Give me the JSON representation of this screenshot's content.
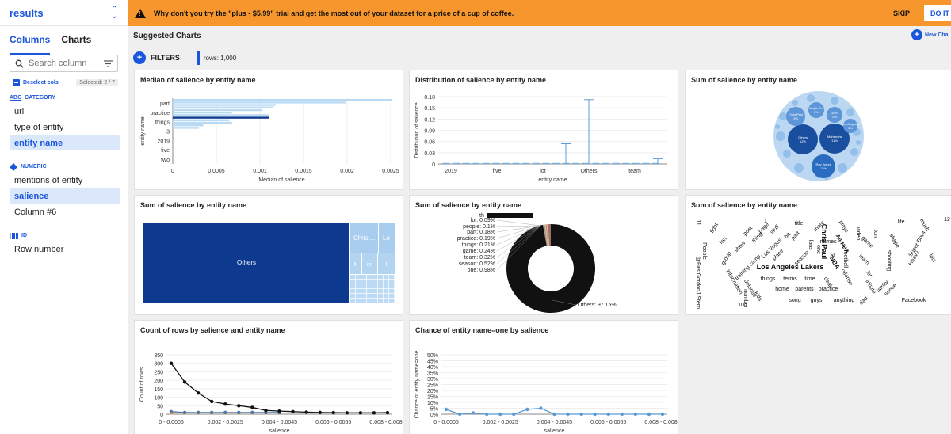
{
  "sidebar": {
    "title": "results",
    "tabs": [
      "Columns",
      "Charts"
    ],
    "search_placeholder": "Search column",
    "deselect_label": "Deselect cols",
    "selected_badge": "Selected: 2 / 7",
    "category": {
      "icon": "ABC",
      "label": "CATEGORY",
      "items": [
        "url",
        "type of entity",
        "entity name"
      ]
    },
    "numeric": {
      "label": "NUMERIC",
      "items": [
        "mentions of entity",
        "salience",
        "Column #6"
      ]
    },
    "id": {
      "label": "ID",
      "items": [
        "Row number"
      ]
    }
  },
  "banner": {
    "text": "Why don't you try the \"plus - $5.99\" trial and get the most out of your dataset for a price of a cup of coffee.",
    "skip": "SKIP",
    "doit": "DO IT"
  },
  "main": {
    "title": "Suggested Charts",
    "new_chart": "New Cha",
    "filters": "FILTERS",
    "rows": "rows: 1,000"
  },
  "colors": {
    "accent": "#1a56db",
    "banner": "#f7962c",
    "dark_blue": "#0d3a8e",
    "light_blue": "#b9daf5",
    "orange": "#f28e2b",
    "black": "#111111"
  },
  "cards": [
    "Median of salience by entity name",
    "Distribution of salience by entity name",
    "Sum of salience by entity name",
    "Sum of salience by entity name",
    "Sum of salience by entity name",
    "Sum of salience by entity name",
    "Count of rows by salience and entity name",
    "Chance of entity name=one by salience"
  ],
  "chart_data": [
    {
      "type": "bar",
      "title": "Median of salience by entity name",
      "orientation": "horizontal",
      "categories": [
        "part",
        "practice",
        "things",
        "3",
        "2019",
        "five",
        "two"
      ],
      "values": [
        0.0025,
        0.00115,
        0.00102,
        0.00035,
        0.00015,
        5e-05,
        2e-05
      ],
      "xlabel": "Median of salience",
      "ylabel": "entity name",
      "xticks": [
        "0",
        "0.0005",
        "0.001",
        "0.0015",
        "0.002",
        "0.0025"
      ],
      "xlim": [
        0,
        0.0025
      ]
    },
    {
      "type": "box",
      "title": "Distribution of salience by entity name",
      "categories": [
        "2019",
        "five",
        "lot",
        "Others",
        "team"
      ],
      "xlabel": "entity name",
      "ylabel": "Distribution of salience",
      "yticks": [
        "0",
        "0.03",
        "0.06",
        "0.09",
        "0.12",
        "0.15",
        "0.18"
      ],
      "ylim": [
        0,
        0.18
      ],
      "whisker_max": {
        "lot": 0.054,
        "Others": 0.172,
        "team": 0.014
      }
    },
    {
      "type": "bubble",
      "title": "Sum of salience by entity name",
      "labels": [
        "Others 12%",
        "Mahendra 11%",
        "Roy Jones 12%",
        "Chris Paul 3%",
        "Magic Tra 2%",
        "Don't 2%",
        "Los Angeles 3%"
      ]
    },
    {
      "type": "treemap",
      "title": "Sum of salience by entity name",
      "labels": [
        "Others",
        "Chris ...",
        "Lo",
        "N",
        "on",
        "l"
      ]
    },
    {
      "type": "pie",
      "title": "Sum of salience by entity name",
      "slices": [
        {
          "label": "lot",
          "value": 0.09
        },
        {
          "label": "people",
          "value": 0.1
        },
        {
          "label": "part",
          "value": 0.18
        },
        {
          "label": "practice",
          "value": 0.19
        },
        {
          "label": "things",
          "value": 0.21
        },
        {
          "label": "game",
          "value": 0.24
        },
        {
          "label": "team",
          "value": 0.32
        },
        {
          "label": "season",
          "value": 0.52
        },
        {
          "label": "one",
          "value": 0.98
        },
        {
          "label": "Others",
          "value": 97.15
        }
      ],
      "slice_labels": [
        "lot: 0.09%",
        "people: 0.1%",
        "part: 0.18%",
        "practice: 0.19%",
        "things: 0.21%",
        "game: 0.24%",
        "team: 0.32%",
        "season: 0.52%",
        "one: 0.98%",
        "Others: 97.15%"
      ]
    },
    {
      "type": "wordcloud",
      "title": "Sum of salience by entity name",
      "words": [
        "Los Angeles Lakers",
        "Chris Paul",
        "NBA",
        "All-NBA",
        "names",
        "things",
        "terms",
        "time",
        "home",
        "parents",
        "practice",
        "song",
        "guys",
        "anything",
        "Facebook",
        "team",
        "game",
        "season",
        "title",
        "more",
        "part",
        "place",
        "Las Vegas",
        "training camp",
        "show",
        "post",
        "page",
        "thing",
        "stuff",
        "bit",
        "fans",
        "one",
        "football",
        "offense",
        "deal",
        "lot",
        "tribute",
        "family",
        "sense",
        "shooting",
        "shape",
        "life",
        "much",
        "Super Bowl",
        "Heavy",
        "lots",
        "plays",
        "video",
        "fan",
        "group",
        "fight",
        "People",
        "information",
        "defense",
        "kids",
        "number",
        "dad",
        "11",
        "12",
        "10",
        "1",
        "all",
        "ton"
      ]
    },
    {
      "type": "line",
      "title": "Count of rows by salience and entity name",
      "categories": [
        "0 - 0.0005",
        "0.0005 - 0.001",
        "0.001 - 0.0015",
        "0.0015 - 0.002",
        "0.002 - 0.0025",
        "0.0025 - 0.003",
        "0.003 - 0.0035",
        "0.0035 - 0.004",
        "0.004 - 0.0045",
        "0.0045 - 0.005",
        "0.005 - 0.0055",
        "0.0055 - 0.006",
        "0.006 - 0.0065",
        "0.0065 - 0.007",
        "0.007 - 0.0075",
        "0.0075 - 0.008",
        "0.008 - 0.0085"
      ],
      "xticks": [
        "0 - 0.0005",
        "0.002 - 0.0025",
        "0.004 - 0.0045",
        "0.006 - 0.0065",
        "0.008 - 0.0085"
      ],
      "series": [
        {
          "values": [
            300,
            190,
            125,
            75,
            60,
            50,
            40,
            22,
            18,
            15,
            12,
            10,
            9,
            8,
            8,
            8,
            9
          ]
        },
        {
          "values": [
            8,
            8,
            8,
            8,
            8,
            8,
            8,
            8,
            null,
            null,
            null,
            null,
            null,
            null,
            null,
            null,
            null
          ]
        },
        {
          "values": [
            15,
            10,
            10,
            10,
            10,
            10,
            10,
            10,
            10,
            null,
            null,
            null,
            null,
            null,
            null,
            null,
            null
          ]
        }
      ],
      "xlabel": "salience",
      "ylabel": "Count of rows",
      "yticks": [
        "0",
        "50",
        "100",
        "150",
        "200",
        "250",
        "300",
        "350"
      ],
      "ylim": [
        0,
        350
      ]
    },
    {
      "type": "line",
      "title": "Chance of entity name=one by salience",
      "categories": [
        "0 - 0.0005",
        "0.0005 - 0.001",
        "0.001 - 0.0015",
        "0.0015 - 0.002",
        "0.002 - 0.0025",
        "0.0025 - 0.003",
        "0.003 - 0.0035",
        "0.0035 - 0.004",
        "0.004 - 0.0045",
        "0.0045 - 0.005",
        "0.005 - 0.0055",
        "0.0055 - 0.006",
        "0.006 - 0.0065",
        "0.0065 - 0.007",
        "0.007 - 0.0075",
        "0.0075 - 0.008",
        "0.008 - 0.0085"
      ],
      "xticks": [
        "0 - 0.0005",
        "0.002 - 0.0025",
        "0.004 - 0.0045",
        "0.006 - 0.0065",
        "0.008 - 0.0085"
      ],
      "values": [
        4,
        0,
        1,
        0,
        0,
        0,
        4,
        5,
        0,
        0,
        0,
        0,
        0,
        0,
        0,
        0,
        0
      ],
      "xlabel": "salience",
      "ylabel": "Chance of entity name=one",
      "yticks": [
        "0%",
        "5%",
        "10%",
        "15%",
        "20%",
        "25%",
        "30%",
        "35%",
        "40%",
        "45%",
        "50%"
      ],
      "ylim": [
        0,
        50
      ]
    }
  ]
}
